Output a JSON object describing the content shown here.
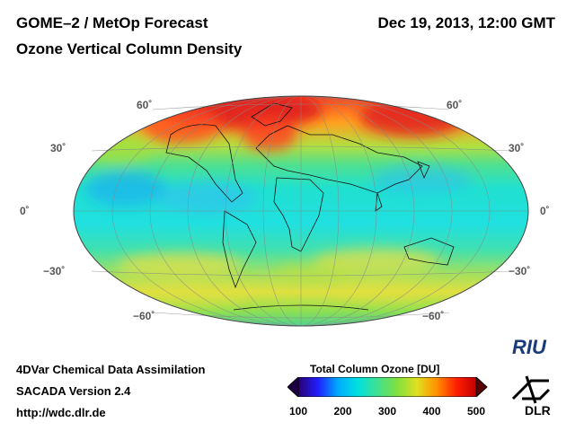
{
  "header": {
    "title_line1": "GOME–2 / MetOp Forecast",
    "title_line2": "Ozone Vertical Column Density",
    "datetime": "Dec 19, 2013, 12:00 GMT"
  },
  "footer": {
    "line1": "4DVar Chemical Data Assimilation",
    "line2": "SACADA Version 2.4",
    "line3": "http://wdc.dlr.de"
  },
  "map": {
    "projection": "hammer",
    "latitude_labels": {
      "n60": "60˚",
      "n30": "30˚",
      "eq": "0˚",
      "s30": "−30˚",
      "s60": "−60˚"
    }
  },
  "colorbar": {
    "title": "Total Column Ozone [DU]",
    "ticks": [
      "100",
      "200",
      "300",
      "400",
      "500"
    ],
    "min": 100,
    "max": 500,
    "colors": [
      "#2b0070",
      "#2020ff",
      "#00aaff",
      "#00e0e0",
      "#40e090",
      "#80e040",
      "#e0e020",
      "#ff9000",
      "#ff2000",
      "#c00000"
    ]
  },
  "logos": {
    "riu": "RIU",
    "dlr": "DLR",
    "riu_icon": "riu-logo-icon",
    "dlr_icon": "dlr-logo-icon"
  }
}
